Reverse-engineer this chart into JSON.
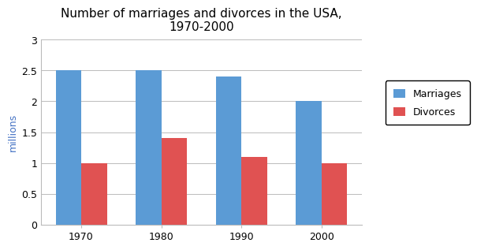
{
  "title": "Number of marriages and divorces in the USA,\n1970-2000",
  "categories": [
    "1970",
    "1980",
    "1990",
    "2000"
  ],
  "marriages": [
    2.5,
    2.5,
    2.4,
    2.0
  ],
  "divorces": [
    1.0,
    1.4,
    1.1,
    1.0
  ],
  "marriage_color": "#5B9BD5",
  "divorce_color": "#E05252",
  "ylabel": "millions",
  "ylabel_color": "#4472C4",
  "ylim": [
    0,
    3
  ],
  "yticks": [
    0,
    0.5,
    1.0,
    1.5,
    2.0,
    2.5,
    3.0
  ],
  "ytick_labels": [
    "0",
    "0.5",
    "1",
    "1.5",
    "2",
    "2.5",
    "3"
  ],
  "legend_labels": [
    "Marriages",
    "Divorces"
  ],
  "bar_width": 0.32,
  "grid_color": "#BBBBBB",
  "background_color": "#FFFFFF",
  "title_fontsize": 11,
  "tick_fontsize": 9,
  "ylabel_fontsize": 9
}
